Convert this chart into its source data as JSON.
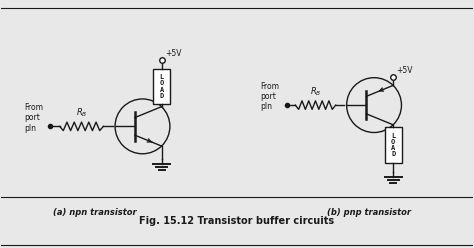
{
  "title": "Fig. 15.12 Transistor buffer circuits",
  "label_a": "(a) npn transistor",
  "label_b": "(b) pnp transistor",
  "bg_color": "#e8e8e8",
  "line_color": "#1a1a1a",
  "figsize": [
    4.74,
    2.48
  ],
  "dpi": 100
}
